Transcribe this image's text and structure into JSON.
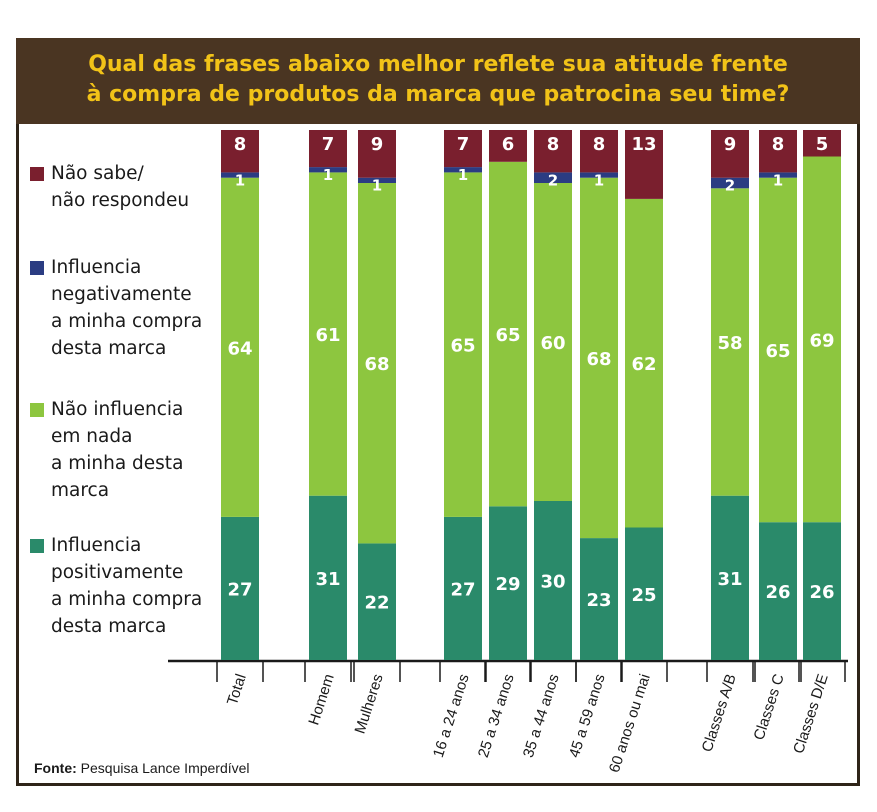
{
  "title_lines": [
    "Qual das frases abaixo melhor reflete sua atitude frente",
    "à compra de produtos da marca que patrocina seu time?"
  ],
  "source_label": "Fonte:",
  "source_text": "Pesquisa Lance Imperdível",
  "legend": [
    {
      "label": "Não sabe/\nnão respondeu",
      "color": "#7a1f2e"
    },
    {
      "label": "Influencia\nnegativamente\na minha compra\ndesta marca",
      "color": "#2b3c82"
    },
    {
      "label": "Não influencia\nem nada\na minha desta\nmarca",
      "color": "#8dc63f"
    },
    {
      "label": "Influencia\npositivamente\na minha compra\ndesta marca",
      "color": "#2a8a6a"
    }
  ],
  "chart_data": {
    "type": "bar",
    "stacked": true,
    "categories": [
      "Total",
      "Homem",
      "Mulheres",
      "16 a 24 anos",
      "25 a 34 anos",
      "35 a 44 anos",
      "45 a 59 anos",
      "60 anos ou mai",
      "Classes A/B",
      "Classes C",
      "Classes D/E"
    ],
    "series": [
      {
        "name": "Influencia positivamente a minha compra desta marca",
        "color": "#2a8a6a",
        "values": [
          27,
          31,
          22,
          27,
          29,
          30,
          23,
          25,
          31,
          26,
          26
        ],
        "labels": [
          "27",
          "31",
          "22",
          "27",
          "29",
          "30",
          "23",
          "25",
          "31",
          "26",
          "26"
        ]
      },
      {
        "name": "Não influencia em nada a minha desta marca",
        "color": "#8dc63f",
        "values": [
          64,
          61,
          68,
          65,
          65,
          60,
          68,
          62,
          58,
          65,
          69
        ],
        "labels": [
          "64",
          "61",
          "68",
          "65",
          "65",
          "60",
          "68",
          "62",
          "58",
          "65",
          "69"
        ]
      },
      {
        "name": "Influencia negativamente a minha compra desta marca",
        "color": "#2b3c82",
        "values": [
          1,
          1,
          1,
          1,
          0,
          2,
          1,
          0,
          2,
          1,
          0
        ],
        "labels": [
          "1",
          "1",
          "1",
          "1",
          "",
          "2",
          "1",
          "",
          "2",
          "1",
          ""
        ]
      },
      {
        "name": "Não sabe/ não respondeu",
        "color": "#7a1f2e",
        "values": [
          8,
          7,
          9,
          7,
          6,
          8,
          8,
          13,
          9,
          8,
          5
        ],
        "labels": [
          "8",
          "7",
          "9",
          "7",
          "6",
          "8",
          "8",
          "13",
          "9",
          "8",
          "5"
        ]
      }
    ],
    "ylim": [
      0,
      100
    ],
    "grid": false,
    "legend_position": "left"
  }
}
